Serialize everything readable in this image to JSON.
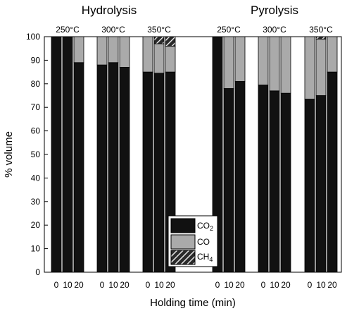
{
  "chart_data": {
    "type": "bar",
    "stacked": true,
    "xlabel": "Holding time (min)",
    "ylabel": "% volume",
    "ylim": [
      0,
      100
    ],
    "yticks": [
      0,
      10,
      20,
      30,
      40,
      50,
      60,
      70,
      80,
      90,
      100
    ],
    "grid": false,
    "legend_position": "bottom-center",
    "colors": {
      "CO2": "#111111",
      "CO": "#aaaaaa",
      "CH4": "#2a2a2a"
    },
    "series_names": [
      "CO2",
      "CO",
      "CH4"
    ],
    "panels": [
      {
        "title": "Hydrolysis",
        "groups": [
          {
            "label": "250°C",
            "bars": [
              {
                "x": "0",
                "CO2": 100,
                "CO": 0,
                "CH4": 0
              },
              {
                "x": "10",
                "CO2": 100,
                "CO": 0,
                "CH4": 0
              },
              {
                "x": "20",
                "CO2": 89,
                "CO": 11,
                "CH4": 0
              }
            ]
          },
          {
            "label": "300°C",
            "bars": [
              {
                "x": "0",
                "CO2": 88,
                "CO": 12,
                "CH4": 0
              },
              {
                "x": "10",
                "CO2": 89,
                "CO": 11,
                "CH4": 0
              },
              {
                "x": "20",
                "CO2": 87,
                "CO": 13,
                "CH4": 0
              }
            ]
          },
          {
            "label": "350°C",
            "bars": [
              {
                "x": "0",
                "CO2": 85,
                "CO": 15,
                "CH4": 0
              },
              {
                "x": "10",
                "CO2": 84.5,
                "CO": 12.5,
                "CH4": 3
              },
              {
                "x": "20",
                "CO2": 85,
                "CO": 11,
                "CH4": 4
              }
            ]
          }
        ]
      },
      {
        "title": "Pyrolysis",
        "groups": [
          {
            "label": "250°C",
            "bars": [
              {
                "x": "0",
                "CO2": 100,
                "CO": 0,
                "CH4": 0
              },
              {
                "x": "10",
                "CO2": 78,
                "CO": 22,
                "CH4": 0
              },
              {
                "x": "20",
                "CO2": 81,
                "CO": 19,
                "CH4": 0
              }
            ]
          },
          {
            "label": "300°C",
            "bars": [
              {
                "x": "0",
                "CO2": 79.5,
                "CO": 20.5,
                "CH4": 0
              },
              {
                "x": "10",
                "CO2": 77,
                "CO": 23,
                "CH4": 0
              },
              {
                "x": "20",
                "CO2": 76,
                "CO": 24,
                "CH4": 0
              }
            ]
          },
          {
            "label": "350°C",
            "bars": [
              {
                "x": "0",
                "CO2": 73.5,
                "CO": 26.5,
                "CH4": 0
              },
              {
                "x": "10",
                "CO2": 75,
                "CO": 24,
                "CH4": 1
              },
              {
                "x": "20",
                "CO2": 85,
                "CO": 15,
                "CH4": 0
              }
            ]
          }
        ]
      }
    ]
  },
  "legend": {
    "co2_main": "CO",
    "co2_sub": "2",
    "co": "CO",
    "ch4_main": "CH",
    "ch4_sub": "4"
  }
}
